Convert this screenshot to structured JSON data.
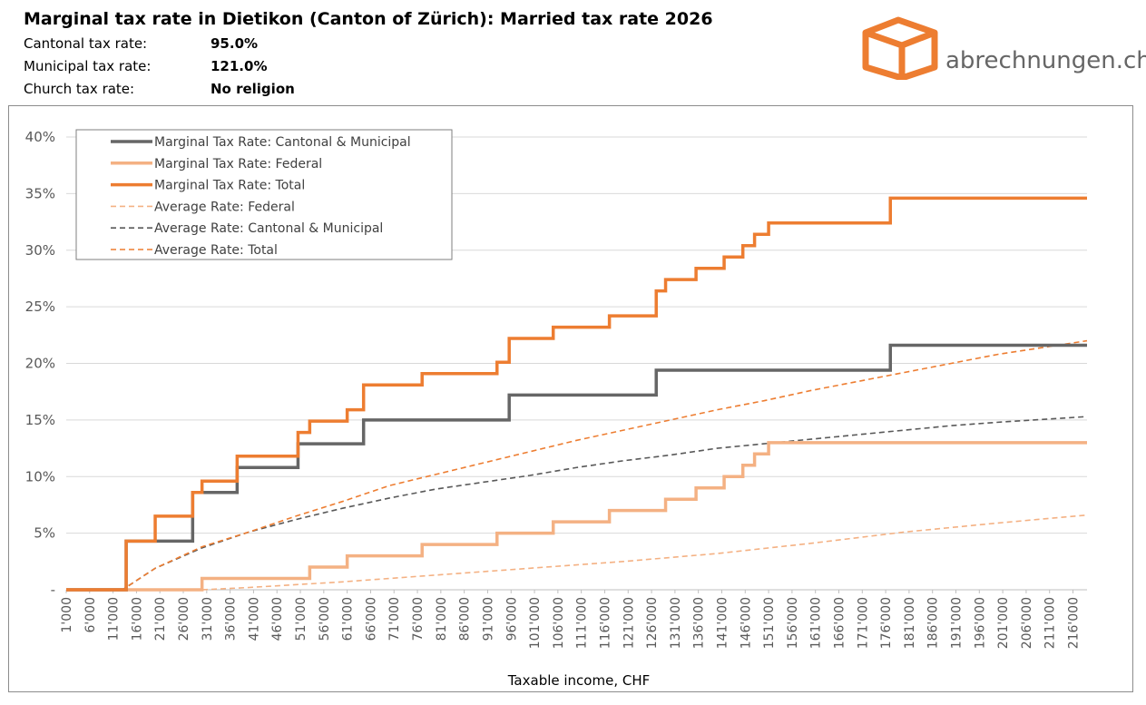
{
  "header": {
    "title": "Marginal tax rate in Dietikon (Canton of Zürich): Married tax rate 2026",
    "rows": [
      {
        "label": "Cantonal tax rate:",
        "value": "95.0%"
      },
      {
        "label": "Municipal tax rate:",
        "value": "121.0%"
      },
      {
        "label": "Church tax rate:",
        "value": "No religion"
      }
    ]
  },
  "logo": {
    "text": "abrechnungen.ch",
    "icon": "box-icon",
    "color": "#ed7d31"
  },
  "chart_data": {
    "type": "line",
    "xlabel": "Taxable income, CHF",
    "ylabel": "",
    "xlim": [
      1000,
      219000
    ],
    "ylim": [
      0,
      40
    ],
    "grid": true,
    "legend_position": "top-left",
    "x_tick_labels": [
      "1'000",
      "6'000",
      "11'000",
      "16'000",
      "21'000",
      "26'000",
      "31'000",
      "36'000",
      "41'000",
      "46'000",
      "51'000",
      "56'000",
      "61'000",
      "66'000",
      "71'000",
      "76'000",
      "81'000",
      "86'000",
      "91'000",
      "96'000",
      "101'000",
      "106'000",
      "111'000",
      "116'000",
      "121'000",
      "126'000",
      "131'000",
      "136'000",
      "141'000",
      "146'000",
      "151'000",
      "156'000",
      "161'000",
      "166'000",
      "171'000",
      "176'000",
      "181'000",
      "186'000",
      "191'000",
      "196'000",
      "201'000",
      "206'000",
      "211'000",
      "216'000"
    ],
    "y_tick_labels": [
      "-",
      "5%",
      "10%",
      "15%",
      "20%",
      "25%",
      "30%",
      "35%",
      "40%"
    ],
    "series": [
      {
        "name": "Marginal Tax Rate: Cantonal & Municipal",
        "color": "#666666",
        "style": "solid",
        "step": true,
        "x": [
          1000,
          13800,
          28000,
          37500,
          50500,
          64500,
          95600,
          127000,
          177000,
          219000
        ],
        "y": [
          0,
          4.3,
          8.6,
          10.8,
          12.9,
          15.0,
          17.2,
          19.4,
          21.6,
          21.6
        ]
      },
      {
        "name": "Marginal Tax Rate: Federal",
        "color": "#f4b183",
        "style": "solid",
        "step": true,
        "x": [
          1000,
          30000,
          53000,
          61000,
          77000,
          93000,
          105000,
          117000,
          129000,
          135500,
          141500,
          145500,
          148000,
          151000,
          219000
        ],
        "y": [
          0,
          1,
          2,
          3,
          4,
          5,
          6,
          7,
          8,
          9,
          10,
          11,
          12,
          13,
          13
        ]
      },
      {
        "name": "Marginal Tax Rate: Total",
        "color": "#ed7d31",
        "style": "solid",
        "step": true,
        "x": [
          1000,
          13800,
          20000,
          28000,
          30000,
          37500,
          50500,
          53000,
          61000,
          64500,
          77000,
          93000,
          95600,
          105000,
          117000,
          127000,
          129000,
          135500,
          141500,
          145500,
          148000,
          151000,
          177000,
          219000
        ],
        "y": [
          0,
          4.3,
          6.5,
          8.6,
          9.6,
          11.8,
          13.9,
          14.9,
          15.9,
          18.1,
          19.1,
          20.1,
          22.2,
          23.2,
          24.2,
          26.4,
          27.4,
          28.4,
          29.4,
          30.4,
          31.4,
          32.4,
          34.6,
          34.6
        ]
      },
      {
        "name": "Average Rate: Federal",
        "color": "#f4b183",
        "style": "dashed",
        "x": [
          1000,
          30000,
          40000,
          60000,
          80000,
          100000,
          120000,
          140000,
          160000,
          180000,
          200000,
          219000
        ],
        "y": [
          0,
          0,
          0.2,
          0.7,
          1.3,
          1.9,
          2.5,
          3.2,
          4.1,
          5.1,
          5.9,
          6.6
        ]
      },
      {
        "name": "Average Rate: Cantonal & Municipal",
        "color": "#595959",
        "style": "dashed",
        "x": [
          1000,
          13000,
          20000,
          30000,
          40000,
          50000,
          60000,
          70000,
          80000,
          90000,
          100000,
          110000,
          120000,
          130000,
          140000,
          150000,
          160000,
          170000,
          180000,
          190000,
          200000,
          219000
        ],
        "y": [
          0,
          0,
          1.9,
          3.7,
          5.1,
          6.2,
          7.2,
          8.1,
          8.9,
          9.5,
          10.1,
          10.8,
          11.4,
          11.9,
          12.5,
          12.9,
          13.3,
          13.7,
          14.1,
          14.5,
          14.8,
          15.3
        ]
      },
      {
        "name": "Average Rate: Total",
        "color": "#ed7d31",
        "style": "dashed",
        "x": [
          1000,
          13000,
          20000,
          30000,
          40000,
          50000,
          60000,
          70000,
          80000,
          90000,
          100000,
          110000,
          120000,
          130000,
          140000,
          150000,
          160000,
          170000,
          180000,
          190000,
          200000,
          219000
        ],
        "y": [
          0,
          0,
          1.9,
          3.8,
          5.1,
          6.5,
          7.8,
          9.2,
          10.2,
          11.2,
          12.2,
          13.2,
          14.1,
          15.0,
          15.9,
          16.7,
          17.6,
          18.4,
          19.2,
          20.0,
          20.8,
          22.0
        ]
      }
    ]
  }
}
